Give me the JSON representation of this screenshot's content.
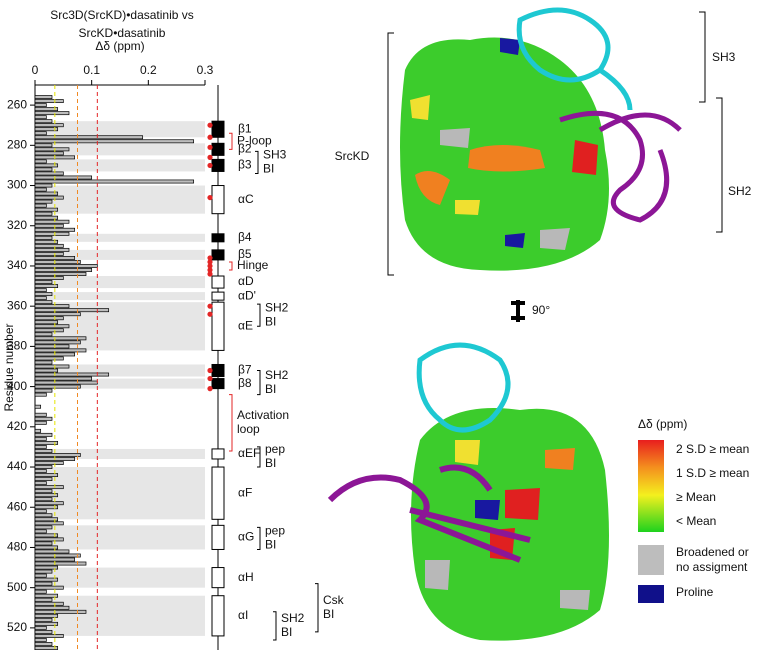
{
  "chart_data": {
    "type": "hbar",
    "title": [
      "Src3D(SrcKD)•dasatinib vs",
      "SrcKD•dasatinib"
    ],
    "x_label": "Δδ (ppm)",
    "y_label": "Residue number",
    "xlim": [
      0,
      0.3
    ],
    "xticks": [
      0,
      0.1,
      0.2,
      0.3
    ],
    "ylim": [
      250,
      531
    ],
    "yticks": [
      260,
      280,
      300,
      320,
      340,
      360,
      380,
      400,
      420,
      440,
      460,
      480,
      500,
      520
    ],
    "color": "#bdbdbd",
    "x": [
      256,
      258,
      260,
      262,
      264,
      266,
      268,
      270,
      272,
      274,
      276,
      278,
      280,
      282,
      284,
      286,
      288,
      290,
      292,
      294,
      296,
      298,
      300,
      302,
      304,
      306,
      308,
      310,
      312,
      314,
      316,
      318,
      320,
      322,
      324,
      326,
      328,
      330,
      332,
      334,
      336,
      338,
      340,
      342,
      344,
      346,
      348,
      350,
      352,
      354,
      356,
      358,
      360,
      362,
      364,
      366,
      368,
      370,
      372,
      374,
      376,
      378,
      380,
      382,
      384,
      386,
      388,
      390,
      392,
      394,
      396,
      398,
      400,
      402,
      404,
      406,
      408,
      410,
      412,
      414,
      416,
      418,
      420,
      422,
      424,
      426,
      428,
      430,
      432,
      434,
      436,
      438,
      440,
      442,
      444,
      446,
      448,
      450,
      452,
      454,
      456,
      458,
      460,
      462,
      464,
      466,
      468,
      470,
      472,
      474,
      476,
      478,
      480,
      482,
      484,
      486,
      488,
      490,
      492,
      494,
      496,
      498,
      500,
      502,
      504,
      506,
      508,
      510,
      512,
      514,
      516,
      518,
      520,
      522,
      524,
      526,
      528,
      530
    ],
    "values": [
      0.03,
      0.05,
      0.02,
      0.04,
      0.06,
      0.02,
      0.03,
      0.05,
      0.04,
      0.02,
      0.19,
      0.28,
      0.03,
      0.06,
      0.05,
      0.07,
      0.02,
      0.04,
      0.03,
      0.05,
      0.1,
      0.28,
      0.03,
      0.02,
      0.04,
      0.05,
      0.03,
      0.02,
      0.04,
      0.03,
      0.04,
      0.06,
      0.05,
      0.07,
      0.06,
      0.03,
      0.04,
      0.05,
      0.06,
      0.05,
      0.07,
      0.08,
      0.11,
      0.1,
      0.09,
      0.05,
      0.03,
      0.04,
      0.02,
      0.03,
      0.02,
      0.03,
      0.06,
      0.13,
      0.08,
      0.05,
      0.04,
      0.06,
      0.05,
      0.03,
      0.09,
      0.08,
      0.06,
      0.09,
      0.07,
      0.05,
      0.03,
      0.06,
      0.04,
      0.13,
      0.1,
      0.11,
      0.08,
      0.03,
      0.02,
      0,
      0,
      0.01,
      0,
      0.02,
      0.03,
      0.02,
      0,
      0.01,
      0.03,
      0.02,
      0.04,
      0.02,
      0.03,
      0.08,
      0.07,
      0.05,
      0.03,
      0.02,
      0.04,
      0.03,
      0.02,
      0.05,
      0.03,
      0.04,
      0.03,
      0.05,
      0.04,
      0.02,
      0.03,
      0.04,
      0.05,
      0.03,
      0.02,
      0.04,
      0.05,
      0.03,
      0.04,
      0.06,
      0.08,
      0.07,
      0.09,
      0.04,
      0.03,
      0.02,
      0.04,
      0.03,
      0.05,
      0.02,
      0.04,
      0.03,
      0.05,
      0.06,
      0.09,
      0.04,
      0.03,
      0.04,
      0.02,
      0.03,
      0.05,
      0.02,
      0.03,
      0.04
    ],
    "reference_lines": [
      {
        "value": 0.035,
        "color": "#e6e600"
      },
      {
        "value": 0.075,
        "color": "#f08a24"
      },
      {
        "value": 0.11,
        "color": "#e32626"
      }
    ],
    "red_markers": [
      270,
      276,
      281,
      286,
      290,
      306,
      336,
      338,
      340,
      342,
      344,
      360,
      364,
      392,
      396,
      401
    ],
    "structure": [
      {
        "label": "β1",
        "start": 268,
        "end": 276,
        "shape": "strand"
      },
      {
        "label": "β2",
        "start": 279,
        "end": 285,
        "shape": "strand"
      },
      {
        "label": "β3",
        "start": 287,
        "end": 293,
        "shape": "strand"
      },
      {
        "label": "αC",
        "start": 300,
        "end": 314,
        "shape": "helix"
      },
      {
        "label": "β4",
        "start": 324,
        "end": 328,
        "shape": "strand"
      },
      {
        "label": "β5",
        "start": 332,
        "end": 337,
        "shape": "strand"
      },
      {
        "label": "αD",
        "start": 345,
        "end": 351,
        "shape": "helix"
      },
      {
        "label": "αD'",
        "start": 353,
        "end": 357,
        "shape": "helix"
      },
      {
        "label": "αE",
        "start": 358,
        "end": 382,
        "shape": "helix"
      },
      {
        "label": "β7",
        "start": 389,
        "end": 395,
        "shape": "strand"
      },
      {
        "label": "β8",
        "start": 396,
        "end": 401,
        "shape": "strand"
      },
      {
        "label": "αEF",
        "start": 431,
        "end": 436,
        "shape": "helix"
      },
      {
        "label": "αF",
        "start": 440,
        "end": 466,
        "shape": "helix"
      },
      {
        "label": "αG",
        "start": 469,
        "end": 481,
        "shape": "helix"
      },
      {
        "label": "αH",
        "start": 490,
        "end": 500,
        "shape": "helix"
      },
      {
        "label": "αI",
        "start": 504,
        "end": 524,
        "shape": "helix"
      }
    ],
    "brackets": [
      {
        "lines": [
          "P-loop"
        ],
        "start": 274,
        "end": 282,
        "color": "#e32626"
      },
      {
        "lines": [
          "SH3",
          "BI"
        ],
        "start": 283,
        "end": 294,
        "color": "#000000"
      },
      {
        "lines": [
          "Hinge"
        ],
        "start": 338,
        "end": 342,
        "color": "#e32626"
      },
      {
        "lines": [
          "SH2",
          "BI"
        ],
        "start": 359,
        "end": 370,
        "color": "#000000"
      },
      {
        "lines": [
          "SH2",
          "BI"
        ],
        "start": 392,
        "end": 404,
        "color": "#000000"
      },
      {
        "lines": [
          "Activation",
          "loop"
        ],
        "start": 404,
        "end": 432,
        "color": "#e32626"
      },
      {
        "lines": [
          "pep",
          "BI"
        ],
        "start": 430,
        "end": 440,
        "color": "#000000"
      },
      {
        "lines": [
          "pep",
          "BI"
        ],
        "start": 470,
        "end": 481,
        "color": "#000000"
      },
      {
        "lines": [
          "Csk",
          "BI"
        ],
        "start": 498,
        "end": 522,
        "color": "#000000"
      },
      {
        "lines": [
          "SH2",
          "BI"
        ],
        "start": 512,
        "end": 526,
        "color": "#000000"
      }
    ]
  },
  "structure_panel": {
    "domain_labels": {
      "kinase": "SrcKD",
      "sh3": "SH3",
      "sh2": "SH2"
    },
    "rotation": "90°",
    "legend": {
      "title": "Δδ (ppm)",
      "scale_labels": [
        "2 S.D ≥ mean",
        "1 S.D ≥ mean",
        "≥ Mean",
        "< Mean"
      ],
      "items": [
        {
          "lines": [
            "Broadened or",
            "no assigment"
          ],
          "color": "#bdbdbd"
        },
        {
          "lines": [
            "Proline"
          ],
          "color": "#10108a"
        }
      ]
    }
  }
}
